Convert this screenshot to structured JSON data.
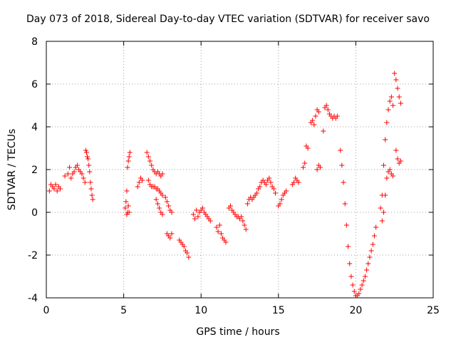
{
  "chart_data": {
    "type": "scatter",
    "title": "Day 073 of 2018, Sidereal Day-to-day VTEC variation (SDTVAR) for receiver savo",
    "xlabel": "GPS time / hours",
    "ylabel": "SDTVAR / TECUs",
    "xlim": [
      0,
      25
    ],
    "ylim": [
      -4,
      8
    ],
    "xticks": [
      0,
      5,
      10,
      15,
      20,
      25
    ],
    "yticks": [
      -4,
      -2,
      0,
      2,
      4,
      6,
      8
    ],
    "xtick_labels": [
      "0",
      "5",
      "10",
      "15",
      "20",
      "25"
    ],
    "ytick_labels": [
      "-4",
      "-2",
      "0",
      "2",
      "4",
      "6",
      "8"
    ],
    "grid": true,
    "marker": "+",
    "color": "#ff0000",
    "series": [
      {
        "name": "SDTVAR",
        "segments": [
          {
            "x": [
              0.2,
              0.3,
              0.4,
              0.5,
              0.6,
              0.7,
              0.8,
              0.9
            ],
            "y": [
              1.0,
              1.3,
              1.2,
              1.1,
              1.3,
              1.0,
              1.2,
              1.1
            ]
          },
          {
            "x": [
              1.2,
              1.4,
              1.5,
              1.6,
              1.7,
              1.8,
              1.9,
              2.0,
              2.1,
              2.2,
              2.3,
              2.4,
              2.5
            ],
            "y": [
              1.7,
              1.8,
              2.1,
              1.6,
              1.8,
              1.9,
              2.1,
              2.2,
              2.0,
              1.9,
              1.8,
              1.6,
              1.4
            ]
          },
          {
            "x": [
              2.55,
              2.6,
              2.65,
              2.7,
              2.75,
              2.8,
              2.85,
              2.9,
              2.95,
              3.0
            ],
            "y": [
              2.9,
              2.8,
              2.6,
              2.5,
              2.2,
              1.9,
              1.4,
              1.1,
              0.8,
              0.6
            ]
          },
          {
            "x": [
              5.1,
              5.15,
              5.2,
              5.25,
              5.3,
              5.35,
              5.4
            ],
            "y": [
              0.2,
              0.5,
              1.0,
              2.1,
              2.4,
              2.6,
              2.8
            ]
          },
          {
            "x": [
              5.2,
              5.25,
              5.3,
              5.35
            ],
            "y": [
              -0.1,
              0.0,
              0.3,
              0.0
            ]
          },
          {
            "x": [
              5.9,
              6.0,
              6.1,
              6.2
            ],
            "y": [
              1.2,
              1.4,
              1.6,
              1.5
            ]
          },
          {
            "x": [
              6.5,
              6.6,
              6.7,
              6.8,
              6.9,
              7.0,
              7.1,
              7.2,
              7.3,
              7.4,
              7.5
            ],
            "y": [
              2.8,
              2.6,
              2.4,
              2.2,
              2.0,
              1.9,
              1.8,
              1.9,
              1.8,
              1.7,
              1.8
            ]
          },
          {
            "x": [
              6.6,
              6.7,
              6.8,
              6.9,
              7.0,
              7.1,
              7.2,
              7.3,
              7.4,
              7.5
            ],
            "y": [
              1.5,
              1.3,
              1.2,
              1.2,
              1.2,
              1.1,
              1.1,
              1.0,
              0.9,
              0.8
            ]
          },
          {
            "x": [
              7.1,
              7.2,
              7.3,
              7.4,
              7.5
            ],
            "y": [
              0.6,
              0.4,
              0.2,
              0.0,
              -0.1
            ]
          },
          {
            "x": [
              7.7,
              7.8,
              7.9,
              8.0,
              8.1
            ],
            "y": [
              0.7,
              0.5,
              0.3,
              0.1,
              0.0
            ]
          },
          {
            "x": [
              7.8,
              7.9,
              8.0,
              8.1
            ],
            "y": [
              -1.0,
              -1.1,
              -1.2,
              -1.0
            ]
          },
          {
            "x": [
              8.6,
              8.7,
              8.8,
              8.9,
              9.0,
              9.1,
              9.2
            ],
            "y": [
              -1.3,
              -1.4,
              -1.5,
              -1.6,
              -1.8,
              -1.9,
              -2.1
            ]
          },
          {
            "x": [
              9.5,
              9.6,
              9.7,
              9.8,
              9.9,
              10.0,
              10.1,
              10.2,
              10.3,
              10.4,
              10.5,
              10.6
            ],
            "y": [
              -0.1,
              -0.3,
              0.1,
              -0.2,
              0.0,
              0.1,
              0.2,
              0.0,
              -0.1,
              -0.2,
              -0.3,
              -0.4
            ]
          },
          {
            "x": [
              11.0,
              11.1,
              11.2,
              11.3,
              11.4,
              11.5,
              11.6
            ],
            "y": [
              -0.7,
              -0.9,
              -0.6,
              -1.0,
              -1.2,
              -1.3,
              -1.4
            ]
          },
          {
            "x": [
              11.8,
              11.9,
              12.0,
              12.1,
              12.2,
              12.3,
              12.4,
              12.5,
              12.6,
              12.7,
              12.8,
              12.9
            ],
            "y": [
              0.2,
              0.3,
              0.1,
              0.0,
              -0.1,
              -0.2,
              -0.2,
              -0.3,
              -0.2,
              -0.4,
              -0.6,
              -0.8
            ]
          },
          {
            "x": [
              13.0,
              13.1,
              13.2,
              13.3,
              13.4,
              13.5,
              13.6,
              13.7,
              13.8,
              13.9,
              14.0,
              14.1,
              14.2,
              14.3,
              14.4,
              14.5,
              14.6,
              14.7,
              14.8
            ],
            "y": [
              0.4,
              0.6,
              0.7,
              0.6,
              0.7,
              0.8,
              0.9,
              1.1,
              1.2,
              1.4,
              1.5,
              1.4,
              1.3,
              1.5,
              1.6,
              1.4,
              1.2,
              1.1,
              0.9
            ]
          },
          {
            "x": [
              15.0,
              15.1,
              15.2,
              15.3,
              15.4,
              15.5
            ],
            "y": [
              0.3,
              0.4,
              0.6,
              0.8,
              0.9,
              1.0
            ]
          },
          {
            "x": [
              15.9,
              16.0,
              16.1,
              16.2,
              16.3
            ],
            "y": [
              1.3,
              1.4,
              1.6,
              1.5,
              1.4
            ]
          },
          {
            "x": [
              16.6,
              16.7,
              16.8,
              16.9
            ],
            "y": [
              2.1,
              2.3,
              3.1,
              3.0
            ]
          },
          {
            "x": [
              17.1,
              17.2,
              17.3,
              17.4,
              17.5,
              17.6
            ],
            "y": [
              4.2,
              4.3,
              4.1,
              4.5,
              4.8,
              4.7
            ]
          },
          {
            "x": [
              17.5,
              17.6,
              17.7
            ],
            "y": [
              2.0,
              2.2,
              2.1
            ]
          },
          {
            "x": [
              17.9
            ],
            "y": [
              3.8
            ]
          },
          {
            "x": [
              18.0,
              18.1,
              18.2,
              18.3,
              18.4,
              18.5,
              18.6,
              18.7,
              18.8
            ],
            "y": [
              4.9,
              5.0,
              4.8,
              4.6,
              4.5,
              4.4,
              4.5,
              4.4,
              4.5
            ]
          },
          {
            "x": [
              19.0,
              19.1,
              19.2,
              19.3,
              19.4,
              19.5,
              19.6,
              19.7,
              19.8,
              19.9,
              20.0,
              20.1
            ],
            "y": [
              2.9,
              2.2,
              1.4,
              0.4,
              -0.6,
              -1.6,
              -2.4,
              -3.0,
              -3.4,
              -3.7,
              -3.9,
              -3.9
            ]
          },
          {
            "x": [
              20.2,
              20.3,
              20.4,
              20.5,
              20.6,
              20.7,
              20.8,
              20.9,
              21.0,
              21.1,
              21.2,
              21.3
            ],
            "y": [
              -3.8,
              -3.6,
              -3.4,
              -3.2,
              -3.0,
              -2.7,
              -2.4,
              -2.1,
              -1.8,
              -1.5,
              -1.1,
              -0.7
            ]
          },
          {
            "x": [
              21.6,
              21.7,
              21.8,
              21.9,
              22.0,
              22.1,
              22.2,
              22.3,
              22.4
            ],
            "y": [
              0.2,
              0.8,
              2.2,
              3.4,
              4.2,
              4.8,
              5.2,
              5.4,
              5.0
            ]
          },
          {
            "x": [
              21.7,
              21.8,
              21.9,
              22.0,
              22.1,
              22.2,
              22.3,
              22.4
            ],
            "y": [
              -0.4,
              0.0,
              0.8,
              1.6,
              1.9,
              2.0,
              1.8,
              1.7
            ]
          },
          {
            "x": [
              22.5,
              22.6,
              22.7,
              22.8,
              22.9
            ],
            "y": [
              6.5,
              6.2,
              5.8,
              5.4,
              5.1
            ]
          },
          {
            "x": [
              22.6,
              22.7,
              22.8,
              22.9
            ],
            "y": [
              2.9,
              2.5,
              2.3,
              2.4
            ]
          }
        ]
      }
    ]
  }
}
